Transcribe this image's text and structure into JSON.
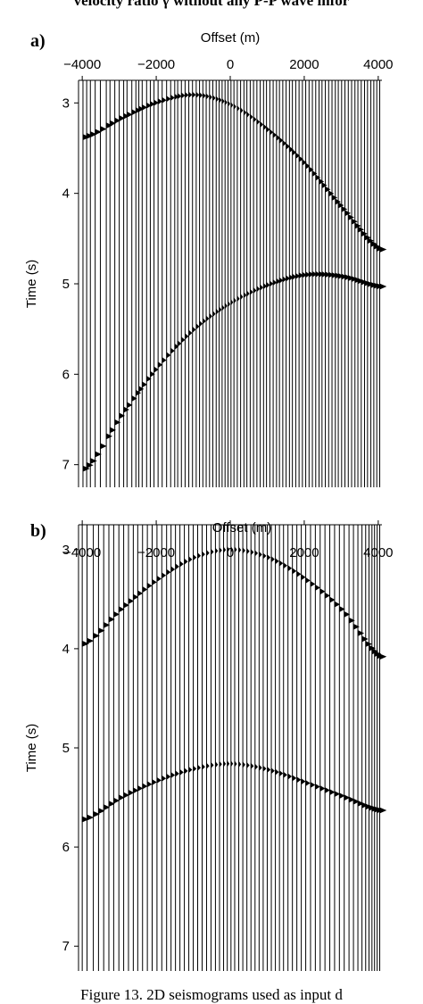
{
  "page": {
    "top_caption": "velocity ratio γ without any P-P wave infor",
    "bottom_caption": "Figure 13. 2D seismograms used as input d"
  },
  "chart_data": [
    {
      "type": "scatter",
      "panel_label": "a)",
      "xlabel": "Offset (m)",
      "ylabel": "Time (s)",
      "xlim": [
        -4100,
        4100
      ],
      "ylim": [
        7.25,
        2.75
      ],
      "x_ticks": [
        -4000,
        -2000,
        0,
        2000,
        4000
      ],
      "x_tick_labels": [
        "−4000",
        "−2000",
        "0",
        "2000",
        "4000"
      ],
      "y_ticks": [
        3,
        4,
        5,
        6,
        7
      ],
      "y_tick_labels": [
        "3",
        "4",
        "5",
        "6",
        "7"
      ],
      "grid": false,
      "trace_offsets": [
        -3980,
        -3880,
        -3780,
        -3650,
        -3510,
        -3350,
        -3250,
        -3120,
        -3000,
        -2880,
        -2790,
        -2660,
        -2550,
        -2470,
        -2380,
        -2260,
        -2160,
        -2060,
        -1950,
        -1840,
        -1720,
        -1610,
        -1500,
        -1420,
        -1320,
        -1220,
        -1120,
        -1020,
        -920,
        -830,
        -740,
        -650,
        -560,
        -470,
        -380,
        -300,
        -220,
        -140,
        -60,
        20,
        100,
        190,
        280,
        370,
        450,
        540,
        630,
        720,
        810,
        900,
        980,
        1070,
        1160,
        1250,
        1330,
        1420,
        1510,
        1600,
        1680,
        1770,
        1860,
        1950,
        2040,
        2130,
        2220,
        2310,
        2400,
        2480,
        2570,
        2660,
        2750,
        2840,
        2920,
        3010,
        3100,
        3190,
        3280,
        3370,
        3450,
        3540,
        3630,
        3710,
        3800,
        3880,
        3960,
        4040
      ],
      "series": [
        {
          "x": [
            -4000,
            -3000,
            -2000,
            -1000,
            0,
            1000,
            2000,
            3000,
            4000
          ],
          "y": [
            3.38,
            3.17,
            2.99,
            2.91,
            3.02,
            3.3,
            3.68,
            4.17,
            4.62
          ]
        },
        {
          "x": [
            -4000,
            -3000,
            -2000,
            -1000,
            0,
            1000,
            2000,
            3000,
            4000
          ],
          "y": [
            7.05,
            6.46,
            5.92,
            5.5,
            5.21,
            5.01,
            4.9,
            4.92,
            5.03
          ]
        }
      ]
    },
    {
      "type": "scatter",
      "panel_label": "b)",
      "xlabel": "Offset (m)",
      "ylabel": "Time (s)",
      "xlim": [
        -4100,
        4100
      ],
      "ylim": [
        7.25,
        2.75
      ],
      "x_ticks": [
        -4000,
        -2000,
        0,
        2000,
        4000
      ],
      "x_tick_labels": [
        "−4000",
        "−2000",
        "0",
        "2000",
        "4000"
      ],
      "y_ticks": [
        3,
        4,
        5,
        6,
        7
      ],
      "y_tick_labels": [
        "3",
        "4",
        "5",
        "6",
        "7"
      ],
      "grid": false,
      "trace_offsets": [
        -4000,
        -3870,
        -3700,
        -3560,
        -3420,
        -3280,
        -3150,
        -3010,
        -2880,
        -2750,
        -2620,
        -2500,
        -2370,
        -2240,
        -2110,
        -1980,
        -1850,
        -1720,
        -1600,
        -1480,
        -1360,
        -1240,
        -1120,
        -1000,
        -880,
        -760,
        -640,
        -520,
        -400,
        -290,
        -180,
        -80,
        20,
        120,
        230,
        340,
        450,
        560,
        670,
        780,
        890,
        1000,
        1110,
        1220,
        1330,
        1440,
        1560,
        1680,
        1800,
        1920,
        2040,
        2170,
        2300,
        2430,
        2560,
        2690,
        2820,
        2950,
        3080,
        3210,
        3330,
        3450,
        3560,
        3660,
        3750,
        3830,
        3900,
        3970,
        4040
      ],
      "series": [
        {
          "x": [
            -4000,
            -3000,
            -2000,
            -1000,
            0,
            1000,
            2000,
            3000,
            4000
          ],
          "y": [
            3.95,
            3.6,
            3.3,
            3.08,
            3.0,
            3.08,
            3.3,
            3.62,
            4.08
          ]
        },
        {
          "x": [
            -4000,
            -3000,
            -2000,
            -1000,
            0,
            1000,
            2000,
            3000,
            4000
          ],
          "y": [
            5.72,
            5.5,
            5.33,
            5.21,
            5.16,
            5.22,
            5.35,
            5.49,
            5.63
          ]
        }
      ]
    }
  ]
}
